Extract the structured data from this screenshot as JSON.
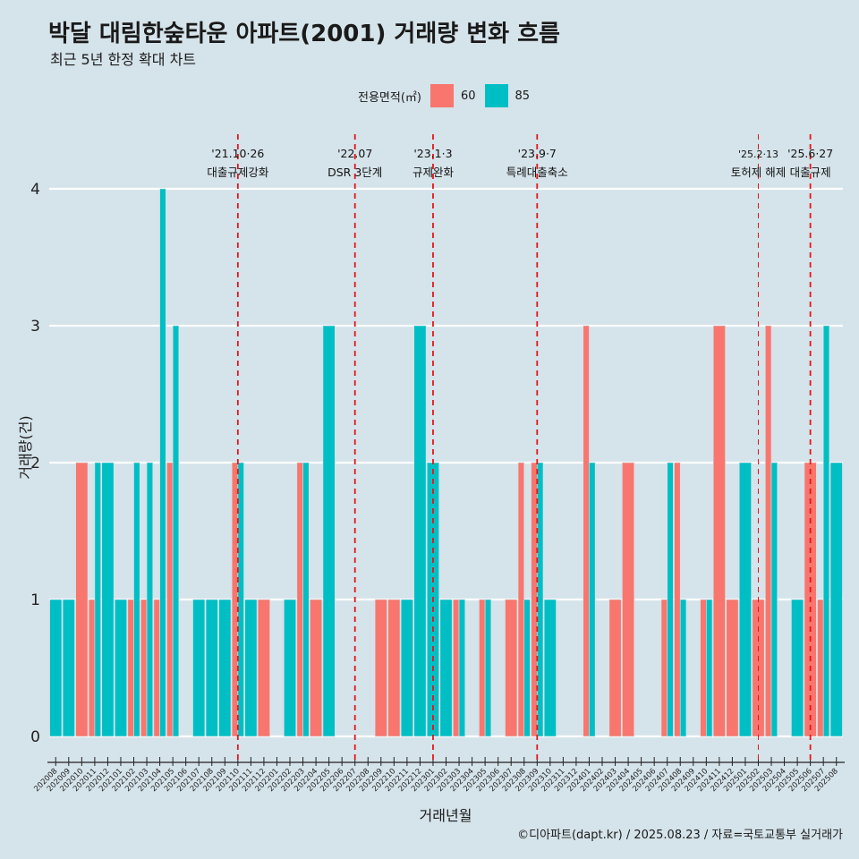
{
  "chart_data": {
    "type": "bar",
    "title": "박달 대림한숲타운 아파트(2001) 거래량 변화 흐름",
    "subtitle": "최근 5년 한정 확대 차트",
    "xlabel": "거래년월",
    "ylabel": "거래량(건)",
    "legend_title": "전용면적(㎡)",
    "legend_position": "top",
    "ylim": [
      0,
      4
    ],
    "yticks": [
      0,
      1,
      2,
      3,
      4
    ],
    "grid": true,
    "caption": "©디아파트(dapt.kr) / 2025.08.23 / 자료=국토교통부 실거래가",
    "categories": [
      "202008",
      "202009",
      "202010",
      "202011",
      "202012",
      "202101",
      "202102",
      "202103",
      "202104",
      "202105",
      "202106",
      "202107",
      "202108",
      "202109",
      "202110",
      "202111",
      "202112",
      "202201",
      "202202",
      "202203",
      "202204",
      "202205",
      "202206",
      "202207",
      "202208",
      "202209",
      "202210",
      "202211",
      "202212",
      "202301",
      "202302",
      "202303",
      "202304",
      "202305",
      "202306",
      "202307",
      "202308",
      "202309",
      "202310",
      "202311",
      "202312",
      "202401",
      "202402",
      "202403",
      "202404",
      "202405",
      "202406",
      "202407",
      "202408",
      "202409",
      "202410",
      "202411",
      "202412",
      "202501",
      "202502",
      "202503",
      "202504",
      "202505",
      "202506",
      "202507",
      "202508"
    ],
    "series": [
      {
        "name": "60",
        "color": "#f8766d",
        "values": [
          0,
          0,
          2,
          1,
          0,
          0,
          1,
          1,
          1,
          2,
          0,
          0,
          0,
          0,
          2,
          0,
          1,
          0,
          0,
          2,
          1,
          0,
          0,
          0,
          0,
          1,
          1,
          0,
          0,
          0,
          0,
          1,
          0,
          1,
          0,
          1,
          2,
          2,
          0,
          0,
          0,
          3,
          0,
          1,
          2,
          0,
          0,
          1,
          2,
          0,
          1,
          3,
          1,
          0,
          1,
          3,
          0,
          0,
          2,
          1,
          0
        ]
      },
      {
        "name": "85",
        "color": "#00bfc4",
        "values": [
          1,
          1,
          0,
          2,
          2,
          1,
          2,
          2,
          4,
          3,
          0,
          1,
          1,
          1,
          2,
          1,
          0,
          0,
          1,
          2,
          0,
          3,
          0,
          0,
          0,
          0,
          0,
          1,
          3,
          2,
          1,
          1,
          0,
          1,
          0,
          0,
          1,
          2,
          1,
          0,
          0,
          2,
          0,
          0,
          0,
          0,
          0,
          2,
          1,
          0,
          1,
          0,
          0,
          2,
          0,
          2,
          0,
          1,
          0,
          3,
          2
        ]
      }
    ],
    "annotations": [
      {
        "category": "202110",
        "date": "'21.10·26",
        "label": "대출규제강화",
        "style": "bold"
      },
      {
        "category": "202207",
        "date": "'22.07",
        "label": "DSR 3단계",
        "style": "bold"
      },
      {
        "category": "202301",
        "date": "'23.1·3",
        "label": "규제완화",
        "style": "bold"
      },
      {
        "category": "202309",
        "date": "'23.9·7",
        "label": "특례대출축소",
        "style": "bold"
      },
      {
        "category": "202502",
        "date": "'25.2·13",
        "label": "토허제 해제",
        "style": "thin"
      },
      {
        "category": "202506",
        "date": "'25.6·27",
        "label": "대출규제",
        "style": "bold"
      }
    ]
  }
}
